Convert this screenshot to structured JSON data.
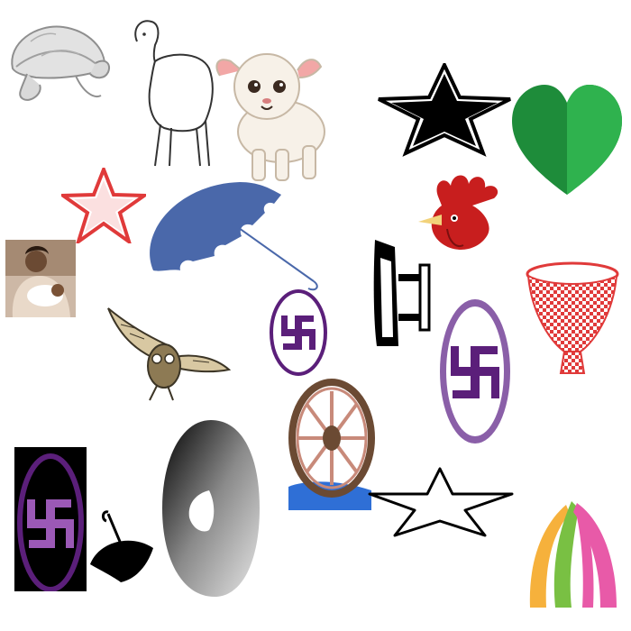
{
  "canvas": {
    "background": "#ffffff"
  },
  "items": [
    {
      "name": "tortoise-sketch-icon",
      "colors": [
        "#d9d9d9",
        "#9a9a9a"
      ]
    },
    {
      "name": "sheep-outline-icon",
      "colors": [
        "#ffffff",
        "#333333"
      ]
    },
    {
      "name": "cartoon-lamb-icon",
      "colors": [
        "#f7f1e8",
        "#f2a7a6",
        "#3b2a20"
      ]
    },
    {
      "name": "black-star-icon",
      "colors": [
        "#000000",
        "#ffffff"
      ]
    },
    {
      "name": "green-heart-icon",
      "colors": [
        "#1e8c3a",
        "#2fb24e"
      ]
    },
    {
      "name": "red-outline-star-icon",
      "colors": [
        "#e03a3a",
        "#ffffff"
      ]
    },
    {
      "name": "blue-umbrella-icon",
      "colors": [
        "#4a68aa"
      ]
    },
    {
      "name": "rooster-head-icon",
      "colors": [
        "#c81e1e",
        "#f2d27a"
      ]
    },
    {
      "name": "mother-child-photo-icon",
      "colors": [
        "#6b4a33",
        "#e9d9c9"
      ]
    },
    {
      "name": "clothes-iron-icon",
      "colors": [
        "#000000",
        "#ffffff"
      ]
    },
    {
      "name": "red-basket-icon",
      "colors": [
        "#e03a3a",
        "#ffffff"
      ]
    },
    {
      "name": "purple-emblem-round-icon",
      "colors": [
        "#5b1f7a",
        "#ffffff"
      ]
    },
    {
      "name": "owl-sketch-icon",
      "colors": [
        "#8d7a54",
        "#3c3526"
      ]
    },
    {
      "name": "purple-emblem-oval-icon",
      "colors": [
        "#5b1f7a",
        "#8a5fa8",
        "#ffffff"
      ]
    },
    {
      "name": "wagon-wheel-icon",
      "colors": [
        "#6b4a33",
        "#c88a7a",
        "#2f6fd6"
      ]
    },
    {
      "name": "purple-emblem-dark-icon",
      "colors": [
        "#000000",
        "#5b1f7a",
        "#9b59b6"
      ]
    },
    {
      "name": "black-umbrella-icon",
      "colors": [
        "#000000"
      ]
    },
    {
      "name": "gradient-crescent-icon",
      "colors": [
        "#000000",
        "#8a8a8a",
        "#d6d6d6"
      ]
    },
    {
      "name": "white-outline-star-icon",
      "colors": [
        "#000000",
        "#ffffff"
      ]
    },
    {
      "name": "colorful-arch-icon",
      "colors": [
        "#f6b13c",
        "#e85aa8",
        "#79c043"
      ]
    }
  ]
}
